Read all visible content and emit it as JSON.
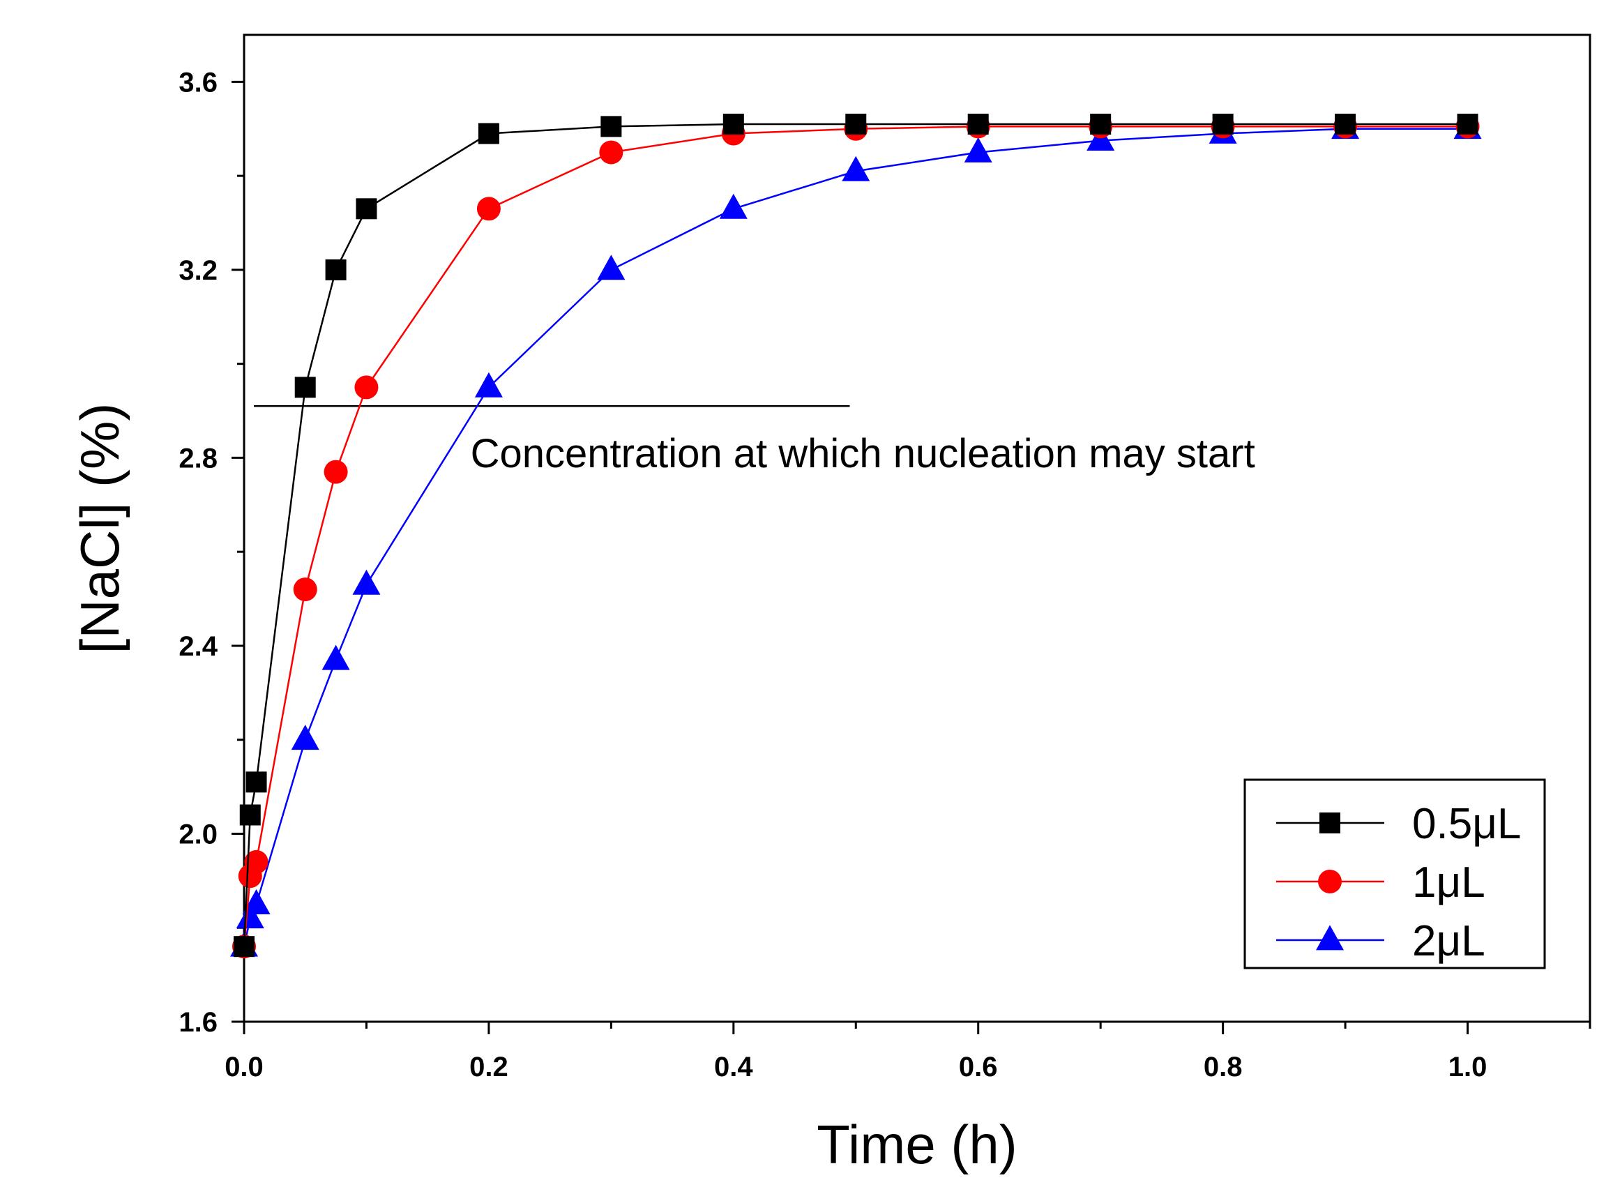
{
  "chart_data": {
    "type": "line",
    "title": "",
    "xlabel": "Time (h)",
    "ylabel": "[NaCl] (%)",
    "xlim": [
      0,
      1.1
    ],
    "ylim": [
      1.6,
      3.7
    ],
    "x_ticks": [
      "0.0",
      "0.2",
      "0.4",
      "0.6",
      "0.8",
      "1.0"
    ],
    "x_tick_values": [
      0,
      0.2,
      0.4,
      0.6,
      0.8,
      1.0
    ],
    "y_ticks": [
      "1.6",
      "2.0",
      "2.4",
      "2.8",
      "3.2",
      "3.6"
    ],
    "y_tick_values": [
      1.6,
      2.0,
      2.4,
      2.8,
      3.2,
      3.6
    ],
    "grid": false,
    "legend_position": "bottom-right",
    "series": [
      {
        "name": "0.5μL",
        "marker": "square",
        "color": "#000000",
        "x": [
          0,
          0.005,
          0.01,
          0.05,
          0.075,
          0.1,
          0.2,
          0.3,
          0.4,
          0.5,
          0.6,
          0.7,
          0.8,
          0.9,
          1.0
        ],
        "values": [
          1.76,
          2.04,
          2.11,
          2.95,
          3.2,
          3.33,
          3.49,
          3.505,
          3.51,
          3.51,
          3.51,
          3.51,
          3.51,
          3.51,
          3.51
        ]
      },
      {
        "name": "1μL",
        "marker": "circle",
        "color": "#ff0000",
        "x": [
          0,
          0.005,
          0.01,
          0.05,
          0.075,
          0.1,
          0.2,
          0.3,
          0.4,
          0.5,
          0.6,
          0.7,
          0.8,
          0.9,
          1.0
        ],
        "values": [
          1.76,
          1.91,
          1.94,
          2.52,
          2.77,
          2.95,
          3.33,
          3.45,
          3.49,
          3.5,
          3.505,
          3.505,
          3.505,
          3.505,
          3.505
        ]
      },
      {
        "name": "2μL",
        "marker": "triangle",
        "color": "#0000ff",
        "x": [
          0,
          0.005,
          0.01,
          0.05,
          0.075,
          0.1,
          0.2,
          0.3,
          0.4,
          0.5,
          0.6,
          0.7,
          0.8,
          0.9,
          1.0
        ],
        "values": [
          1.76,
          1.82,
          1.85,
          2.2,
          2.37,
          2.53,
          2.95,
          3.2,
          3.33,
          3.41,
          3.45,
          3.475,
          3.49,
          3.5,
          3.5
        ]
      }
    ],
    "annotations": [
      {
        "type": "hline",
        "y": 2.91,
        "x_start": 0.008,
        "x_end": 0.495,
        "color": "#000000"
      },
      {
        "type": "text",
        "text": "Concentration at which nucleation may start",
        "x": 0.185,
        "y": 2.78
      }
    ]
  }
}
